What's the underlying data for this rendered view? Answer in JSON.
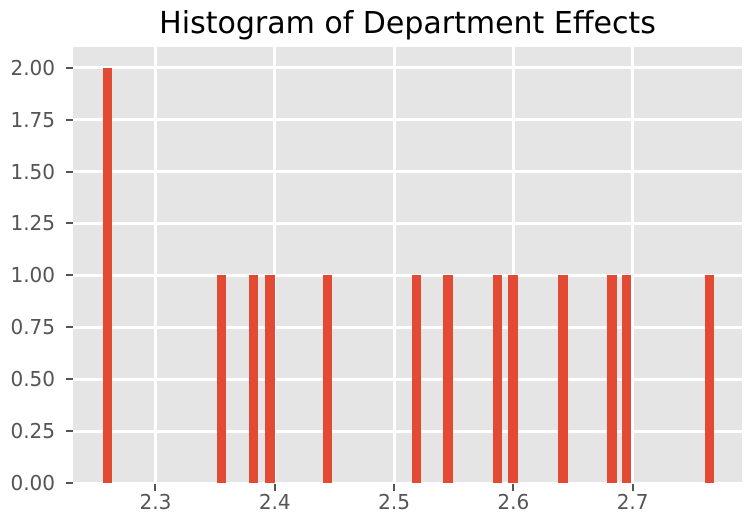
{
  "chart_data": {
    "type": "bar",
    "title": "Histogram of Department Effects",
    "xlabel": "",
    "ylabel": "",
    "xlim": [
      2.2309,
      2.7917
    ],
    "ylim": [
      0,
      2.1
    ],
    "grid": true,
    "legend": "none",
    "x_ticks": [
      {
        "value": 2.3,
        "label": "2.3"
      },
      {
        "value": 2.4,
        "label": "2.4"
      },
      {
        "value": 2.5,
        "label": "2.5"
      },
      {
        "value": 2.6,
        "label": "2.6"
      },
      {
        "value": 2.7,
        "label": "2.7"
      }
    ],
    "y_ticks": [
      {
        "value": 0.0,
        "label": "0.00"
      },
      {
        "value": 0.25,
        "label": "0.25"
      },
      {
        "value": 0.5,
        "label": "0.50"
      },
      {
        "value": 0.75,
        "label": "0.75"
      },
      {
        "value": 1.0,
        "label": "1.00"
      },
      {
        "value": 1.25,
        "label": "1.25"
      },
      {
        "value": 1.5,
        "label": "1.50"
      },
      {
        "value": 1.75,
        "label": "1.75"
      },
      {
        "value": 2.0,
        "label": "2.00"
      }
    ],
    "bar_width": 0.0078,
    "bars": [
      {
        "x": 2.2596,
        "count": 2
      },
      {
        "x": 2.3552,
        "count": 1
      },
      {
        "x": 2.3824,
        "count": 1
      },
      {
        "x": 2.3961,
        "count": 1
      },
      {
        "x": 2.444,
        "count": 1
      },
      {
        "x": 2.5186,
        "count": 1
      },
      {
        "x": 2.5453,
        "count": 1
      },
      {
        "x": 2.5868,
        "count": 1
      },
      {
        "x": 2.5998,
        "count": 1
      },
      {
        "x": 2.6417,
        "count": 1
      },
      {
        "x": 2.6828,
        "count": 1
      },
      {
        "x": 2.6949,
        "count": 1
      },
      {
        "x": 2.7647,
        "count": 1
      }
    ]
  },
  "colors": {
    "bar": "#E24A33",
    "plot_background": "#E5E5E5",
    "gridline": "#FFFFFF",
    "tick_label": "#555555",
    "tick_mark": "#555555",
    "title": "#000000",
    "figure_background": "#FFFFFF"
  }
}
